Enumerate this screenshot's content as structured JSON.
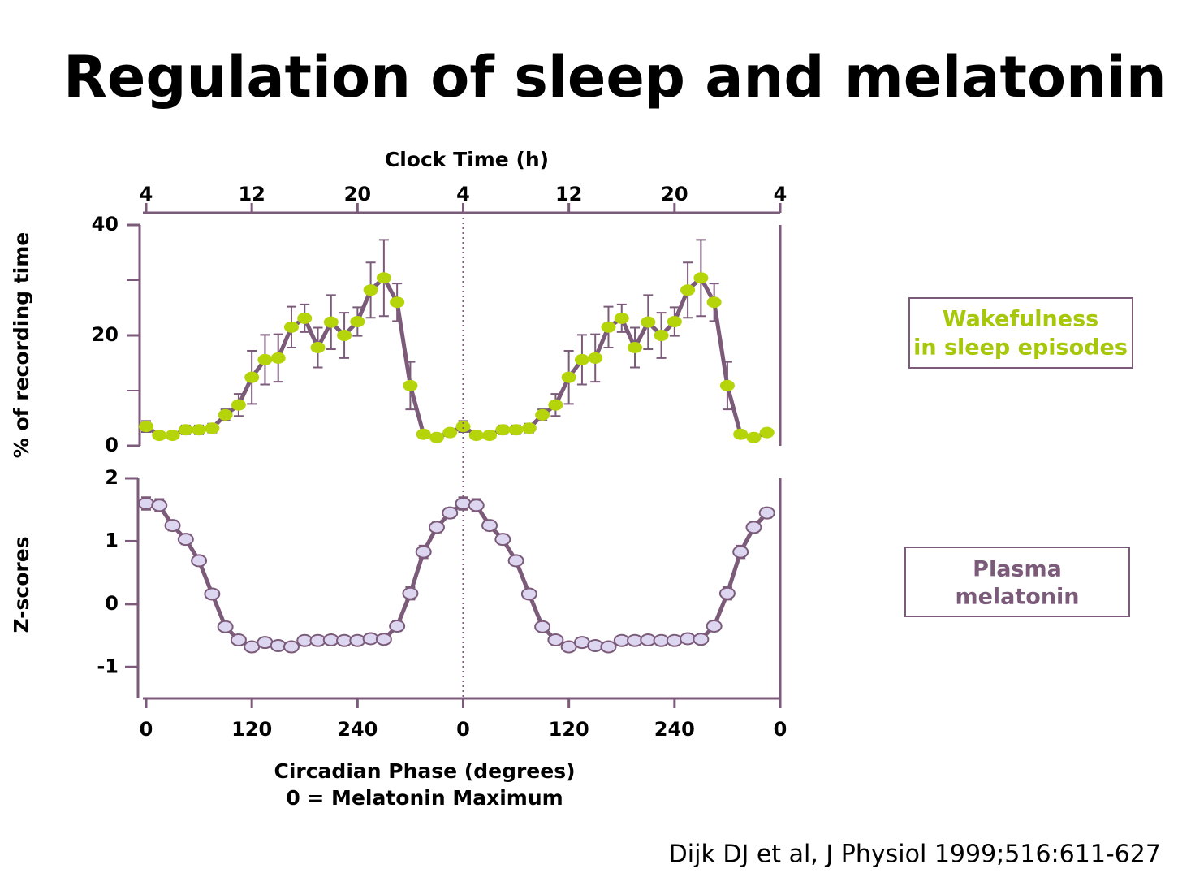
{
  "title": "Regulation of sleep and melatonin",
  "citation": "Dijk DJ et al, J Physiol 1999;516:611-627",
  "chart_data": [
    {
      "type": "line",
      "ylabel": "% of recording time",
      "x2label": "Clock Time (h)",
      "x2lim": [
        4,
        52
      ],
      "x2ticks": [
        4,
        12,
        20,
        {
          "value": 28,
          "label": "4"
        },
        {
          "value": 36,
          "label": "12"
        },
        {
          "value": 44,
          "label": "20"
        },
        {
          "value": 52,
          "label": "4"
        }
      ],
      "xlim": [
        0,
        720
      ],
      "ylim": [
        0,
        40
      ],
      "yticks": [
        0,
        20,
        40
      ],
      "yminorticks": [
        10,
        30
      ],
      "annotation": [
        "Wakefulness",
        "in sleep episodes"
      ],
      "annotation_color": "#a6c70a",
      "series": [
        {
          "name": "Wakefulness in sleep episodes",
          "color": "#b5d40a",
          "line_color": "#7b5b79",
          "x": [
            0,
            15,
            30,
            45,
            60,
            75,
            90,
            105,
            120,
            135,
            150,
            165,
            180,
            195,
            210,
            225,
            240,
            255,
            270,
            285,
            300,
            315,
            330,
            345,
            360,
            375,
            390,
            405,
            420,
            435,
            450,
            465,
            480,
            495,
            510,
            525,
            540,
            555,
            570,
            585,
            600,
            615,
            630,
            645,
            660,
            675,
            690,
            705
          ],
          "values": [
            3.5,
            1.9,
            1.9,
            2.9,
            2.9,
            3.2,
            5.6,
            7.4,
            12.4,
            15.6,
            15.9,
            21.5,
            23.1,
            17.8,
            22.4,
            20,
            22.5,
            28.2,
            30.4,
            26,
            10.9,
            2.1,
            1.5,
            2.4,
            3.5,
            1.9,
            1.9,
            2.9,
            2.9,
            3.2,
            5.6,
            7.4,
            12.4,
            15.6,
            15.9,
            21.5,
            23.1,
            17.8,
            22.4,
            20,
            22.5,
            28.2,
            30.4,
            26,
            10.9,
            2.1,
            1.5,
            2.4
          ],
          "errors": [
            1,
            0.5,
            0.5,
            0.8,
            0.8,
            0.8,
            1,
            2,
            4.8,
            4.5,
            4.3,
            3.7,
            2.5,
            3.6,
            4.9,
            4.1,
            2.6,
            5,
            6.9,
            3.4,
            4.3,
            0.5,
            0.5,
            0.5,
            1,
            0.5,
            0.5,
            0.8,
            0.8,
            0.8,
            1,
            2,
            4.8,
            4.5,
            4.3,
            3.7,
            2.5,
            3.6,
            4.9,
            4.1,
            2.6,
            5,
            6.9,
            3.4,
            4.3,
            0.5,
            0.5,
            0.5
          ]
        }
      ]
    },
    {
      "type": "line",
      "ylabel": "Z-scores",
      "xlabel": [
        "Circadian Phase (degrees)",
        "0 = Melatonin Maximum"
      ],
      "xlim": [
        0,
        720
      ],
      "xticks": [
        0,
        120,
        240,
        {
          "value": 360,
          "label": "0"
        },
        {
          "value": 480,
          "label": "120"
        },
        {
          "value": 600,
          "label": "240"
        },
        {
          "value": 720,
          "label": "0"
        }
      ],
      "ylim": [
        -1.5,
        2
      ],
      "yticks": [
        -1,
        0,
        1,
        2
      ],
      "vline": 360,
      "annotation": [
        "Plasma",
        "melatonin"
      ],
      "annotation_color": "#7b5b79",
      "series": [
        {
          "name": "Plasma melatonin",
          "color": "#dcd6f0",
          "line_color": "#7b5b79",
          "x": [
            0,
            15,
            30,
            45,
            60,
            75,
            90,
            105,
            120,
            135,
            150,
            165,
            180,
            195,
            210,
            225,
            240,
            255,
            270,
            285,
            300,
            315,
            330,
            345,
            360,
            375,
            390,
            405,
            420,
            435,
            450,
            465,
            480,
            495,
            510,
            525,
            540,
            555,
            570,
            585,
            600,
            615,
            630,
            645,
            660,
            675,
            690,
            705
          ],
          "values": [
            1.6,
            1.57,
            1.25,
            1.03,
            0.69,
            0.16,
            -0.36,
            -0.57,
            -0.68,
            -0.61,
            -0.66,
            -0.68,
            -0.58,
            -0.58,
            -0.57,
            -0.58,
            -0.58,
            -0.55,
            -0.56,
            -0.35,
            0.17,
            0.83,
            1.22,
            1.45,
            1.6,
            1.57,
            1.25,
            1.03,
            0.69,
            0.16,
            -0.36,
            -0.57,
            -0.68,
            -0.61,
            -0.66,
            -0.68,
            -0.58,
            -0.58,
            -0.57,
            -0.58,
            -0.58,
            -0.55,
            -0.56,
            -0.35,
            0.17,
            0.83,
            1.22,
            1.45
          ],
          "errors": [
            0.1,
            0.1,
            0.08,
            0.08,
            0.06,
            0.06,
            0.05,
            0.05,
            0.05,
            0.05,
            0.05,
            0.05,
            0.05,
            0.05,
            0.05,
            0.05,
            0.05,
            0.05,
            0.05,
            0.08,
            0.1,
            0.1,
            0.08,
            0.08,
            0.1,
            0.1,
            0.08,
            0.08,
            0.06,
            0.06,
            0.05,
            0.05,
            0.05,
            0.05,
            0.05,
            0.05,
            0.05,
            0.05,
            0.05,
            0.05,
            0.05,
            0.05,
            0.05,
            0.08,
            0.1,
            0.1,
            0.08,
            0.08
          ]
        }
      ]
    }
  ]
}
